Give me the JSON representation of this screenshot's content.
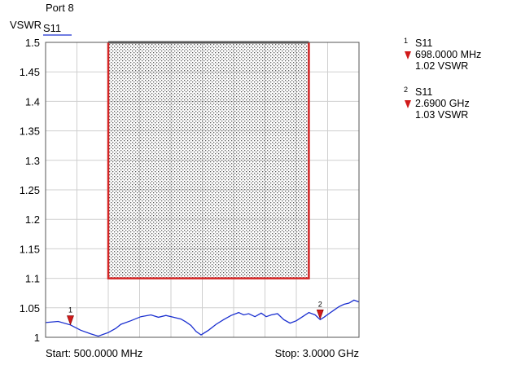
{
  "header": {
    "port_label": "Port 8",
    "y_unit": "VSWR",
    "trace_name": "S11"
  },
  "axes": {
    "start_label": "Start: 500.0000 MHz",
    "stop_label": "Stop: 3.0000 GHz"
  },
  "markers": [
    {
      "num": "1",
      "trace": "S11",
      "freq": "698.0000 MHz",
      "value": "1.02 VSWR"
    },
    {
      "num": "2",
      "trace": "S11",
      "freq": "2.6900 GHz",
      "value": "1.03 VSWR"
    }
  ],
  "colors": {
    "trace": "#1a2fd0",
    "limit": "#d42424",
    "marker": "#d11a1a",
    "grid": "#cfcfcf"
  },
  "chart_data": {
    "type": "line",
    "xlabel": "",
    "ylabel": "VSWR",
    "xlim": [
      500,
      3000
    ],
    "ylim": [
      1,
      1.5
    ],
    "x_unit": "MHz",
    "y_ticks": [
      1,
      1.05,
      1.1,
      1.15,
      1.2,
      1.25,
      1.3,
      1.35,
      1.4,
      1.45,
      1.5
    ],
    "y_tick_labels": [
      "1",
      "1.05",
      "1.1",
      "1.15",
      "1.2",
      "1.25",
      "1.3",
      "1.35",
      "1.4",
      "1.45",
      "1.5"
    ],
    "grid": true,
    "series": [
      {
        "name": "S11",
        "x": [
          500,
          600,
          698,
          780,
          860,
          920,
          1000,
          1060,
          1100,
          1180,
          1260,
          1340,
          1400,
          1460,
          1520,
          1580,
          1620,
          1660,
          1700,
          1740,
          1800,
          1860,
          1920,
          1980,
          2040,
          2080,
          2120,
          2170,
          2220,
          2260,
          2300,
          2350,
          2400,
          2450,
          2500,
          2550,
          2600,
          2650,
          2690,
          2720,
          2760,
          2800,
          2840,
          2880,
          2920,
          2960,
          3000
        ],
        "y": [
          1.025,
          1.027,
          1.021,
          1.012,
          1.006,
          1.002,
          1.008,
          1.015,
          1.022,
          1.028,
          1.035,
          1.038,
          1.034,
          1.037,
          1.034,
          1.031,
          1.026,
          1.02,
          1.01,
          1.004,
          1.012,
          1.022,
          1.03,
          1.037,
          1.042,
          1.038,
          1.04,
          1.035,
          1.041,
          1.035,
          1.038,
          1.04,
          1.03,
          1.024,
          1.028,
          1.035,
          1.042,
          1.038,
          1.03,
          1.034,
          1.04,
          1.046,
          1.052,
          1.056,
          1.058,
          1.063,
          1.06
        ]
      }
    ],
    "limit_mask": {
      "x": [
        1000,
        2600
      ],
      "y": [
        1.1,
        1.5
      ]
    },
    "markers": [
      {
        "num": "1",
        "x": 698,
        "y": 1.02
      },
      {
        "num": "2",
        "x": 2690,
        "y": 1.03
      }
    ]
  }
}
